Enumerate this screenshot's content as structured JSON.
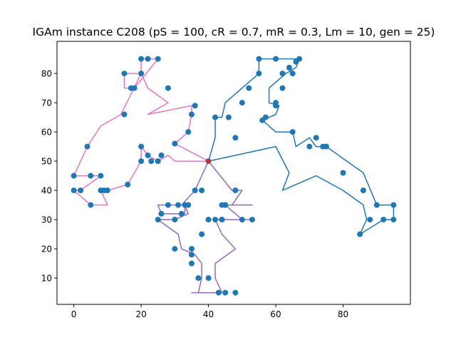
{
  "chart_data": {
    "type": "line",
    "title": "IGAm instance C208 ($pS = 100, cR = 0.7, mR = 0.3, Lm = 10, gen = 25$)",
    "title_display": "IGAm instance C208 (pS = 100, cR = 0.7, mR = 0.3, Lm = 10, gen = 25)",
    "xlabel": "",
    "ylabel": "",
    "xlim": [
      -5,
      100
    ],
    "ylim": [
      1,
      91
    ],
    "xticks": [
      0,
      20,
      40,
      60,
      80
    ],
    "yticks": [
      10,
      20,
      30,
      40,
      50,
      60,
      70,
      80
    ],
    "grid": false,
    "depot": {
      "x": 40,
      "y": 50,
      "color": "#d62728"
    },
    "scatter": {
      "color": "#1f77b4",
      "x": [
        40,
        20,
        22,
        25,
        28,
        20,
        17,
        15,
        18,
        20,
        22,
        25,
        35,
        36,
        34,
        30,
        26,
        25,
        23,
        20,
        16,
        10,
        8,
        5,
        2,
        0,
        0,
        5,
        9,
        8,
        4,
        15,
        36,
        48,
        45,
        44,
        55,
        60,
        55,
        64,
        62,
        65,
        67,
        66,
        62,
        60,
        57,
        56,
        60,
        65,
        72,
        75,
        70,
        74,
        80,
        86,
        85,
        88,
        90,
        92,
        95,
        95,
        38,
        42,
        46,
        48,
        50,
        52,
        53,
        50,
        45,
        44,
        42,
        40,
        38,
        35,
        35,
        37,
        40,
        43,
        45,
        48,
        35,
        30,
        30,
        28,
        25,
        26,
        31,
        33,
        32,
        34,
        40,
        44
      ],
      "y": [
        50,
        85,
        85,
        85,
        75,
        80,
        75,
        80,
        75,
        55,
        52,
        50,
        66,
        69,
        60,
        56,
        52,
        50,
        50,
        50,
        42,
        40,
        40,
        35,
        40,
        40,
        45,
        45,
        40,
        45,
        55,
        66,
        40,
        40,
        35,
        30,
        80,
        85,
        85,
        82,
        80,
        80,
        85,
        84,
        75,
        70,
        65,
        64,
        69,
        60,
        58,
        55,
        55,
        55,
        46,
        40,
        25,
        30,
        35,
        30,
        30,
        35,
        40,
        65,
        65,
        58,
        70,
        75,
        30,
        30,
        35,
        35,
        30,
        30,
        25,
        20,
        15,
        10,
        10,
        5,
        5,
        5,
        18,
        20,
        30,
        35,
        30,
        32,
        35,
        35,
        32,
        35,
        30,
        30
      ]
    },
    "series": [
      {
        "color": "#1f77b4",
        "points": [
          [
            40,
            50
          ],
          [
            42,
            58
          ],
          [
            42,
            65
          ],
          [
            44,
            65
          ],
          [
            45,
            70
          ],
          [
            50,
            75
          ],
          [
            55,
            80
          ],
          [
            55,
            85
          ],
          [
            60,
            85
          ],
          [
            67,
            85
          ],
          [
            66,
            82
          ],
          [
            63,
            80
          ],
          [
            58,
            75
          ],
          [
            58,
            70
          ],
          [
            61,
            69
          ],
          [
            60,
            66
          ],
          [
            56,
            64
          ],
          [
            60,
            60
          ],
          [
            65,
            60
          ],
          [
            66,
            55
          ],
          [
            70,
            58
          ],
          [
            72,
            55
          ],
          [
            75,
            55
          ],
          [
            86,
            46
          ],
          [
            90,
            35
          ],
          [
            95,
            35
          ],
          [
            95,
            30
          ],
          [
            92,
            30
          ],
          [
            85,
            25
          ],
          [
            87,
            30
          ],
          [
            86,
            35
          ],
          [
            80,
            40
          ],
          [
            72,
            45
          ],
          [
            62,
            40
          ],
          [
            64,
            46
          ],
          [
            60,
            55
          ],
          [
            40,
            50
          ]
        ]
      },
      {
        "color": "#e377c2",
        "points": [
          [
            40,
            50
          ],
          [
            30,
            56
          ],
          [
            34,
            60
          ],
          [
            35,
            66
          ],
          [
            35,
            69
          ],
          [
            22,
            66
          ],
          [
            28,
            70
          ],
          [
            22,
            75
          ],
          [
            20,
            80
          ],
          [
            20,
            85
          ],
          [
            22,
            85
          ],
          [
            25,
            85
          ],
          [
            18,
            75
          ],
          [
            15,
            75
          ],
          [
            15,
            80
          ],
          [
            20,
            80
          ],
          [
            14,
            66
          ],
          [
            8,
            62
          ],
          [
            4,
            55
          ],
          [
            0,
            45
          ],
          [
            5,
            45
          ],
          [
            8,
            45
          ],
          [
            2,
            40
          ],
          [
            0,
            40
          ],
          [
            5,
            35
          ],
          [
            10,
            35
          ],
          [
            8,
            40
          ],
          [
            10,
            40
          ],
          [
            16,
            42
          ],
          [
            20,
            50
          ],
          [
            20,
            55
          ],
          [
            22,
            52
          ],
          [
            25,
            50
          ],
          [
            28,
            52
          ],
          [
            30,
            50
          ],
          [
            40,
            50
          ]
        ]
      },
      {
        "color": "#9467bd",
        "points": [
          [
            40,
            50
          ],
          [
            36,
            40
          ],
          [
            32,
            35
          ],
          [
            25,
            35
          ],
          [
            26,
            32
          ],
          [
            33,
            32
          ],
          [
            33,
            35
          ],
          [
            34,
            32
          ],
          [
            30,
            30
          ],
          [
            25,
            30
          ],
          [
            31,
            25
          ],
          [
            32,
            20
          ],
          [
            36,
            18
          ],
          [
            38,
            15
          ],
          [
            38,
            10
          ],
          [
            37,
            5
          ],
          [
            35,
            5
          ],
          [
            39,
            5
          ],
          [
            40,
            5
          ],
          [
            44,
            5
          ],
          [
            42,
            10
          ],
          [
            42,
            15
          ],
          [
            48,
            20
          ],
          [
            44,
            25
          ],
          [
            42,
            30
          ],
          [
            48,
            30
          ],
          [
            53,
            30
          ],
          [
            50,
            30
          ],
          [
            45,
            35
          ],
          [
            48,
            35
          ],
          [
            53,
            35
          ],
          [
            50,
            35
          ],
          [
            47,
            35
          ],
          [
            50,
            40
          ],
          [
            47,
            40
          ],
          [
            40,
            50
          ]
        ]
      }
    ]
  }
}
